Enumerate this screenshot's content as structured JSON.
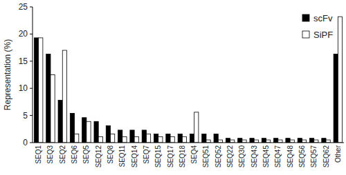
{
  "chart_data": {
    "type": "bar",
    "categories": [
      "SEQ1",
      "SEQ3",
      "SEQ2",
      "SEQ6",
      "SEQ5",
      "SEQ12",
      "SEQ8",
      "SEQ11",
      "SEQ14",
      "SEQ7",
      "SEQ15",
      "SEQ17",
      "SEQ18",
      "SEQ4",
      "SEQ51",
      "SEQ52",
      "SEQ22",
      "SEQ30",
      "SEQ43",
      "SEQ45",
      "SEQ47",
      "SEQ48",
      "SEQ56",
      "SEQ57",
      "SEQ62",
      "Other"
    ],
    "series": [
      {
        "name": "scFv",
        "color": "#000000",
        "values": [
          19.3,
          16.3,
          7.8,
          5.4,
          4.6,
          3.9,
          3.1,
          2.3,
          2.3,
          2.3,
          1.6,
          1.6,
          1.6,
          1.6,
          1.6,
          1.6,
          0.8,
          0.8,
          0.8,
          0.8,
          0.8,
          0.8,
          0.8,
          0.8,
          0.8,
          16.3
        ]
      },
      {
        "name": "SiPF",
        "color": "#ffffff",
        "values": [
          19.3,
          12.5,
          17.0,
          1.6,
          3.9,
          1.1,
          1.6,
          1.1,
          1.1,
          1.6,
          1.1,
          1.1,
          1.1,
          5.6,
          0.5,
          0.5,
          0.5,
          0.5,
          0.5,
          0.5,
          0.5,
          0.5,
          0.5,
          0.5,
          0.5,
          23.2
        ]
      }
    ],
    "y_label": "Representation (%)",
    "ylim": [
      0,
      25
    ],
    "yticks": [
      0,
      5,
      10,
      15,
      20,
      25
    ],
    "legend": "top-right",
    "grid": false
  }
}
